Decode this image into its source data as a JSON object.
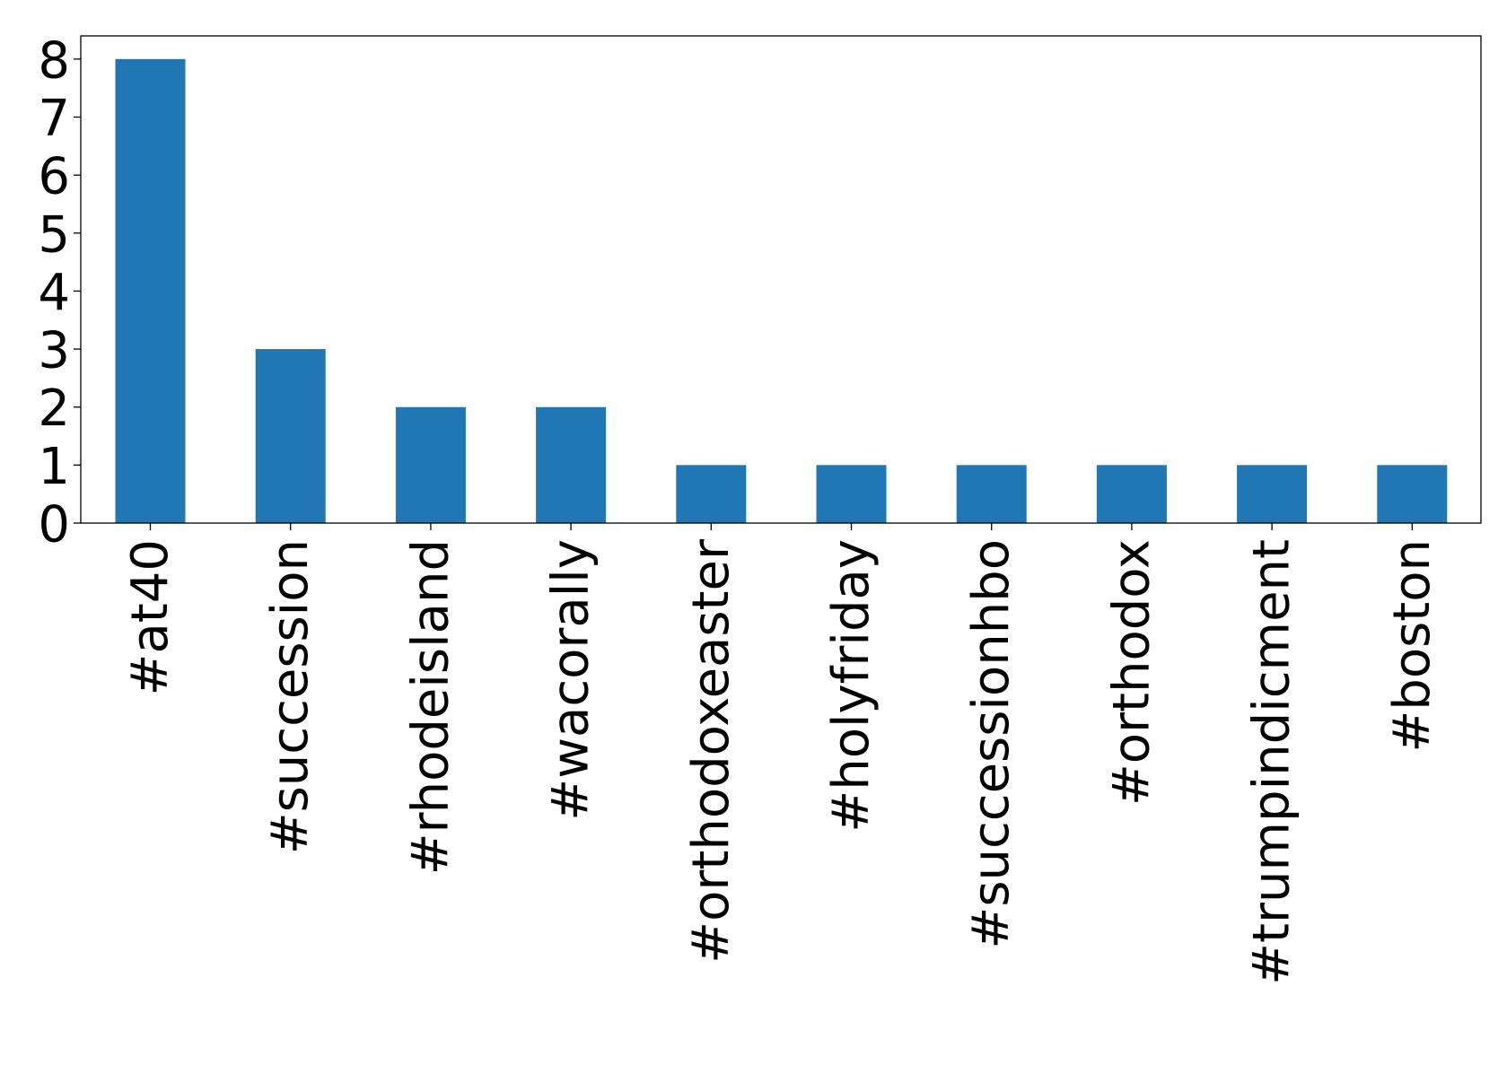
{
  "chart_data": {
    "type": "bar",
    "title": "",
    "xlabel": "",
    "ylabel": "",
    "categories": [
      "#at40",
      "#succession",
      "#rhodeisland",
      "#wacorally",
      "#orthodoxeaster",
      "#holyfriday",
      "#successionhbo",
      "#orthodox",
      "#trumpindicment",
      "#boston"
    ],
    "values": [
      8,
      3,
      2,
      2,
      1,
      1,
      1,
      1,
      1,
      1
    ],
    "ylim": [
      0,
      8.4
    ],
    "yticks": [
      "0",
      "1",
      "2",
      "3",
      "4",
      "5",
      "6",
      "7",
      "8"
    ],
    "grid": false,
    "legend": "none",
    "bar_color": "#1f77b4"
  }
}
